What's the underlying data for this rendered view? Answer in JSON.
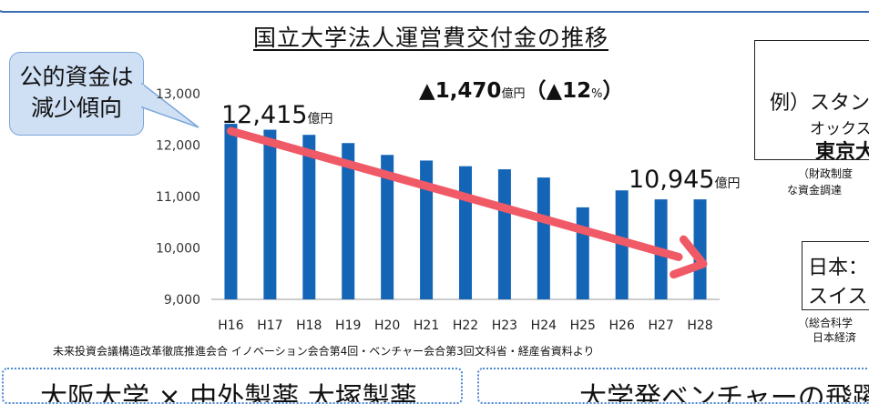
{
  "chart_data": {
    "type": "bar",
    "title": "国立大学法人運営費交付金の推移",
    "categories": [
      "H16",
      "H17",
      "H18",
      "H19",
      "H20",
      "H21",
      "H22",
      "H23",
      "H24",
      "H25",
      "H26",
      "H27",
      "H28"
    ],
    "values": [
      12415,
      12300,
      12200,
      12040,
      11810,
      11700,
      11590,
      11530,
      11370,
      10790,
      11120,
      10945,
      10945
    ],
    "ylim": [
      9000,
      13000
    ],
    "yticks": [
      "9,000",
      "10,000",
      "11,000",
      "12,000",
      "13,000"
    ],
    "xlabel": "",
    "ylabel": "",
    "grid": false,
    "bar_color": "#1565b7",
    "trend_color": "#f05a66",
    "annotations": {
      "start_value": "12,415",
      "end_value": "10,945",
      "unit": "億円",
      "change_prefix": "▲1,470",
      "change_unit": "億円",
      "change_paren_open": "（▲12",
      "change_percent": "%",
      "change_paren_close": "）"
    }
  },
  "callout": {
    "line1": "公的資金は",
    "line2": "減少傾向",
    "bg": "#cfe0f5",
    "border": "#7ca6d9"
  },
  "source": "未来投資会議構造改革徹底推進会合 イノベーション会合第4回・ベンチャー会合第3回文科省・経産省資料より",
  "example_box": {
    "line1": "例）スタンフォ",
    "line2": "オックスフォ",
    "line3": "東京大",
    "note1": "（財政制度",
    "note2": "な資金調達"
  },
  "compare_box": {
    "line1": "日本：",
    "line2": "スイス：",
    "note1": "（総合科学",
    "note2": "日本経済"
  },
  "bottom": {
    "left": "大阪大学 × 中外製薬 大塚製薬",
    "right": "大学発ベンチャーの飛躍"
  },
  "colors": {
    "frame": "#3b6db3",
    "dotted": "#4a86d0"
  }
}
